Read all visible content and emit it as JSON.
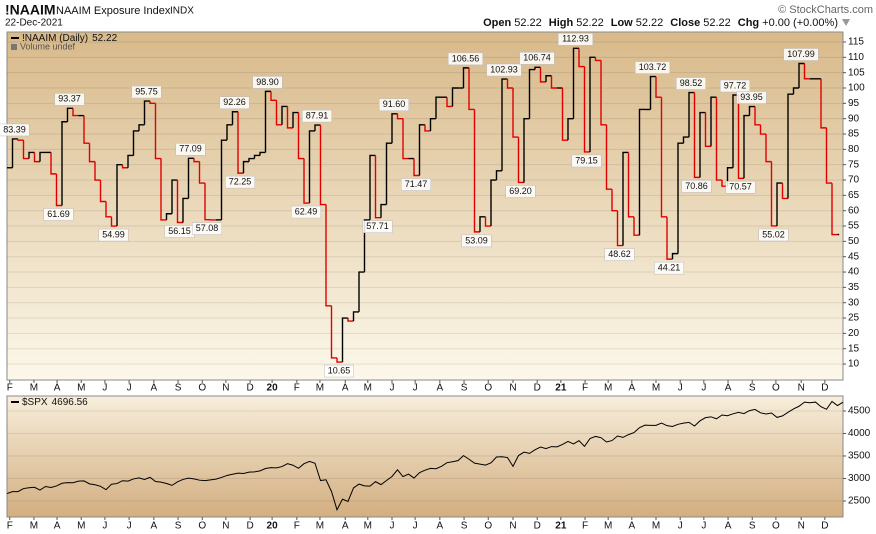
{
  "header": {
    "symbol": "!NAAIM",
    "name": "NAAIM Exposure Index",
    "exchange": "INDX",
    "date": "22-Dec-2021",
    "quote": [
      {
        "label": "Open",
        "value": 52.22
      },
      {
        "label": "High",
        "value": 52.22
      },
      {
        "label": "Low",
        "value": 52.22
      },
      {
        "label": "Close",
        "value": 52.22
      },
      {
        "label": "Chg",
        "value": "+0.00 (+0.00%)"
      }
    ],
    "credit": "© StockCharts.com"
  },
  "chart_data": [
    {
      "type": "step",
      "volume_note": "Volume undef",
      "series": [
        {
          "name": "!NAAIM (Daily)",
          "color": "#000000",
          "down_color": "#e00000",
          "values": [
            74,
            83.39,
            83,
            77,
            79,
            76,
            79,
            79,
            72,
            61.69,
            89,
            93.37,
            91,
            91,
            82,
            76,
            70,
            63,
            58,
            54.99,
            75,
            74,
            78,
            86,
            88,
            95.75,
            95,
            77,
            57,
            59,
            70,
            56.15,
            64,
            77.09,
            76,
            69,
            57.08,
            57,
            57,
            83,
            88,
            92.26,
            72.25,
            76,
            77,
            78,
            79,
            98.9,
            96,
            88,
            94,
            87,
            92,
            77,
            62.49,
            86,
            87.91,
            62,
            29,
            12,
            10.65,
            25,
            24,
            27,
            40,
            57,
            78,
            57.71,
            62,
            82,
            91.6,
            90,
            77,
            77,
            71.47,
            88,
            86,
            90,
            97,
            97,
            94,
            100,
            100,
            106.56,
            93,
            53.09,
            58,
            55,
            70,
            73,
            102.93,
            100,
            84,
            69.2,
            90,
            106,
            106.74,
            102,
            104,
            100,
            100,
            83,
            90,
            112.93,
            107,
            79.15,
            110,
            109,
            88,
            67,
            60,
            48.62,
            79,
            58,
            52,
            93,
            93,
            103.72,
            97,
            58,
            44.21,
            46,
            82,
            84,
            98.52,
            70.86,
            92,
            81,
            97,
            70,
            68,
            74,
            97.72,
            70.57,
            91,
            93.95,
            88,
            85,
            76,
            55.02,
            69,
            64,
            98,
            100,
            107.99,
            103,
            103,
            103,
            87,
            69,
            52.22,
            52.22
          ],
          "value_labels": [
            null,
            "83.39",
            null,
            null,
            null,
            null,
            null,
            null,
            null,
            "61.69",
            null,
            "93.37",
            null,
            null,
            null,
            null,
            null,
            null,
            null,
            "54.99",
            null,
            null,
            null,
            null,
            null,
            "95.75",
            null,
            null,
            null,
            null,
            null,
            "56.15",
            null,
            "77.09",
            null,
            null,
            "57.08",
            null,
            null,
            null,
            null,
            "92.26",
            "72.25",
            null,
            null,
            null,
            null,
            "98.90",
            null,
            null,
            null,
            null,
            null,
            null,
            "62.49",
            null,
            "87.91",
            null,
            null,
            null,
            "10.65",
            null,
            null,
            null,
            null,
            null,
            null,
            "57.71",
            null,
            null,
            "91.60",
            null,
            null,
            null,
            "71.47",
            null,
            null,
            null,
            null,
            null,
            null,
            null,
            null,
            "106.56",
            null,
            "53.09",
            null,
            null,
            null,
            null,
            "102.93",
            null,
            null,
            "69.20",
            null,
            null,
            "106.74",
            null,
            null,
            null,
            null,
            null,
            null,
            "112.93",
            null,
            "79.15",
            null,
            null,
            null,
            null,
            null,
            "48.62",
            null,
            null,
            null,
            null,
            null,
            "103.72",
            null,
            null,
            "44.21",
            null,
            null,
            null,
            "98.52",
            "70.86",
            null,
            null,
            null,
            null,
            null,
            null,
            "97.72",
            "70.57",
            null,
            "93.95",
            null,
            null,
            null,
            "55.02",
            null,
            null,
            null,
            null,
            "107.99",
            null,
            null,
            null,
            null,
            null,
            null,
            null
          ]
        }
      ],
      "xlim": [
        0,
        152
      ],
      "ylim": [
        4.8,
        118.26
      ],
      "yticks": [
        10,
        15,
        20,
        25,
        30,
        35,
        40,
        45,
        50,
        55,
        60,
        65,
        70,
        75,
        80,
        85,
        90,
        95,
        100,
        105,
        110,
        115
      ],
      "xticks": [
        {
          "value": 0.5,
          "label": "F"
        },
        {
          "value": 4.9,
          "label": "M"
        },
        {
          "value": 9.1,
          "label": "A"
        },
        {
          "value": 13.5,
          "label": "M"
        },
        {
          "value": 17.8,
          "label": "J"
        },
        {
          "value": 22.2,
          "label": "J"
        },
        {
          "value": 26.7,
          "label": "A"
        },
        {
          "value": 31.1,
          "label": "S"
        },
        {
          "value": 35.5,
          "label": "O"
        },
        {
          "value": 39.8,
          "label": "N"
        },
        {
          "value": 44.2,
          "label": "D"
        },
        {
          "value": 48.2,
          "label": "20"
        },
        {
          "value": 52.7,
          "label": "F"
        },
        {
          "value": 56.9,
          "label": "M"
        },
        {
          "value": 61.5,
          "label": "A"
        },
        {
          "value": 65.6,
          "label": "M"
        },
        {
          "value": 70,
          "label": "J"
        },
        {
          "value": 74.2,
          "label": "J"
        },
        {
          "value": 78.7,
          "label": "A"
        },
        {
          "value": 83.1,
          "label": "S"
        },
        {
          "value": 87.5,
          "label": "O"
        },
        {
          "value": 92,
          "label": "N"
        },
        {
          "value": 96.4,
          "label": "D"
        },
        {
          "value": 100.7,
          "label": "21"
        },
        {
          "value": 105.1,
          "label": "F"
        },
        {
          "value": 109.3,
          "label": "M"
        },
        {
          "value": 113.6,
          "label": "A"
        },
        {
          "value": 118,
          "label": "M"
        },
        {
          "value": 122.4,
          "label": "J"
        },
        {
          "value": 126.7,
          "label": "J"
        },
        {
          "value": 131.1,
          "label": "A"
        },
        {
          "value": 135.5,
          "label": "S"
        },
        {
          "value": 139.8,
          "label": "O"
        },
        {
          "value": 144.4,
          "label": "N"
        },
        {
          "value": 148.7,
          "label": "D"
        }
      ],
      "grid": true
    },
    {
      "type": "line",
      "series": [
        {
          "name": "$SPX",
          "color": "#000000",
          "values": [
            2665,
            2707,
            2708,
            2776,
            2793,
            2804,
            2743,
            2822,
            2801,
            2834,
            2893,
            2907,
            2905,
            2940,
            2946,
            2881,
            2860,
            2826,
            2752,
            2873,
            2887,
            2950,
            2942,
            2990,
            3014,
            2977,
            3025,
            2932,
            2919,
            2889,
            2847,
            2926,
            2979,
            3007,
            2992,
            2962,
            2952,
            2970,
            2986,
            3023,
            3067,
            3093,
            3120,
            3110,
            3141,
            3146,
            3169,
            3221,
            3240,
            3235,
            3265,
            3330,
            3295,
            3226,
            3328,
            3380,
            3338,
            2954,
            2972,
            2711,
            2305,
            2541,
            2489,
            2790,
            2875,
            2837,
            2831,
            2930,
            2864,
            2955,
            3044,
            3194,
            3041,
            3098,
            3009,
            3130,
            3185,
            3225,
            3216,
            3271,
            3351,
            3373,
            3397,
            3508,
            3427,
            3341,
            3319,
            3298,
            3348,
            3477,
            3484,
            3465,
            3270,
            3510,
            3585,
            3558,
            3638,
            3699,
            3663,
            3709,
            3703,
            3756,
            3824,
            3768,
            3841,
            3714,
            3887,
            3934,
            3907,
            3811,
            3842,
            3943,
            3913,
            3975,
            4020,
            4129,
            4185,
            4180,
            4181,
            4233,
            4174,
            4156,
            4204,
            4230,
            4247,
            4166,
            4281,
            4352,
            4370,
            4327,
            4411,
            4395,
            4437,
            4468,
            4442,
            4509,
            4535,
            4459,
            4433,
            4455,
            4357,
            4391,
            4471,
            4545,
            4605,
            4697,
            4683,
            4698,
            4595,
            4538,
            4712,
            4620,
            4696.56
          ]
        }
      ],
      "xlim": [
        0,
        152
      ],
      "ylim": [
        2144,
        4833
      ],
      "yticks": [
        2500,
        3000,
        3500,
        4000,
        4500
      ],
      "grid": true
    }
  ]
}
